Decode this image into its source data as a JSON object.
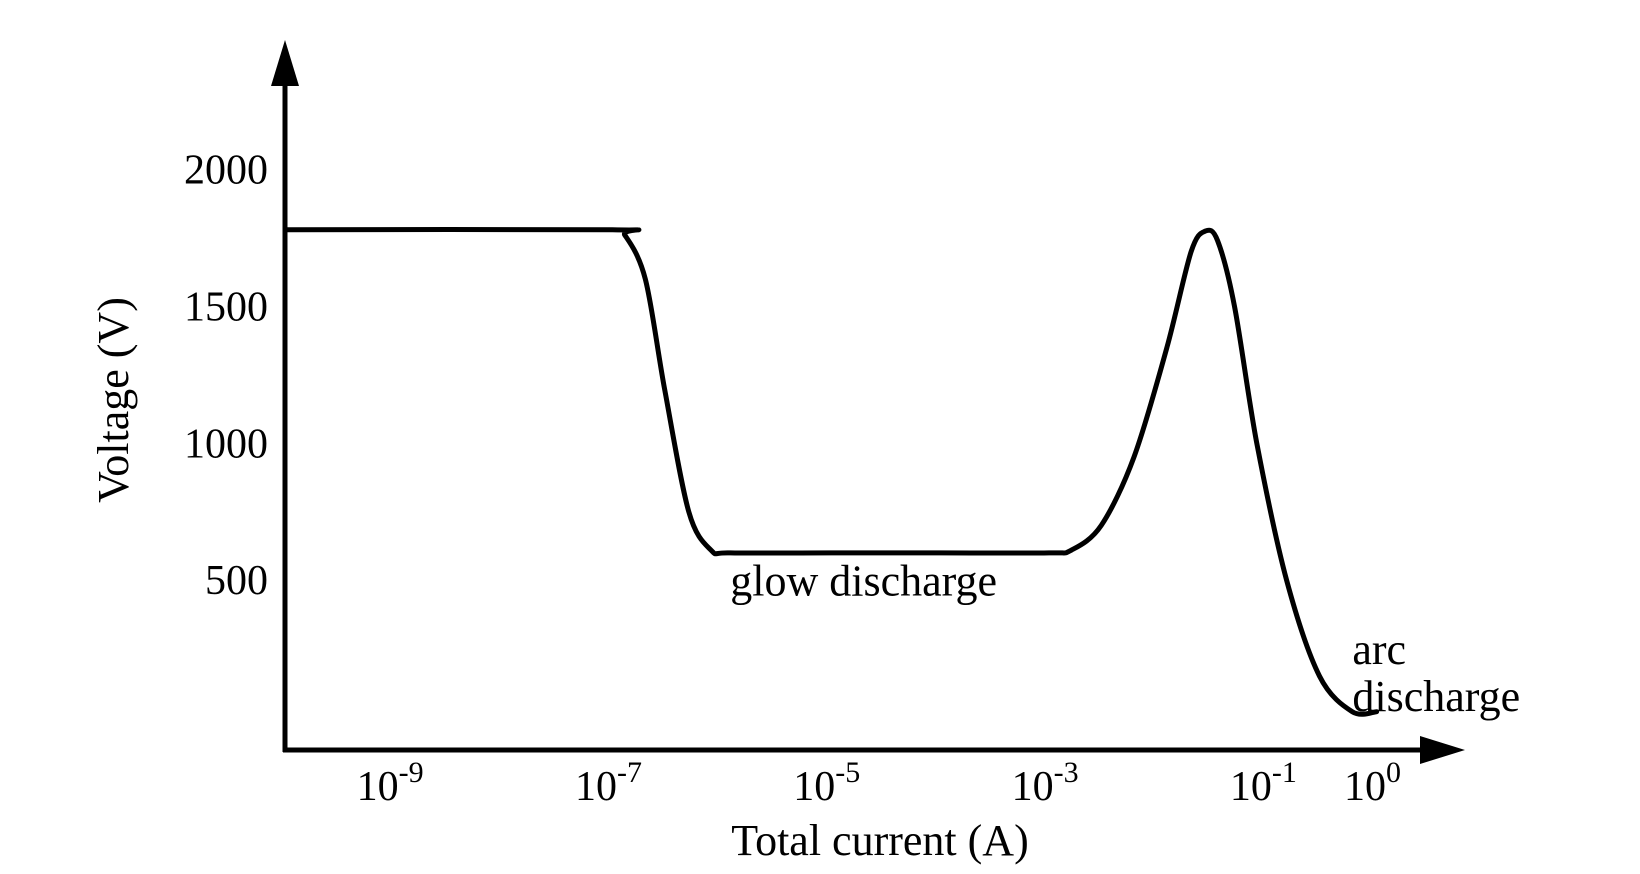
{
  "chart_data": {
    "type": "line",
    "xlabel": "Total current (A)",
    "ylabel": "Voltage (V)",
    "x_scale": "log",
    "x_ticks": [
      {
        "base": "10",
        "exp": "-9"
      },
      {
        "base": "10",
        "exp": "-7"
      },
      {
        "base": "10",
        "exp": "-5"
      },
      {
        "base": "10",
        "exp": "-3"
      },
      {
        "base": "10",
        "exp": "-1"
      },
      {
        "base": "10",
        "exp": "0"
      }
    ],
    "y_ticks": [
      "500",
      "1000",
      "1500",
      "2000"
    ],
    "series": [
      {
        "x": [
          1e-10,
          1e-07,
          1.3e-07,
          2e-07,
          3e-07,
          5e-07,
          8e-07,
          1.2e-06,
          1e-05,
          0.0001,
          0.001,
          0.0016,
          0.003,
          0.006,
          0.012,
          0.02,
          0.027,
          0.035,
          0.05,
          0.08,
          0.15,
          0.3,
          0.6,
          1.0
        ],
        "y": [
          1780,
          1780,
          1760,
          1600,
          1200,
          750,
          610,
          600,
          600,
          600,
          600,
          610,
          700,
          950,
          1350,
          1700,
          1775,
          1740,
          1500,
          1000,
          500,
          150,
          20,
          20
        ]
      }
    ],
    "annotations": [
      {
        "text": "glow discharge",
        "x": 1.2e-06,
        "y": 480
      },
      {
        "lines": [
          "arc",
          "discharge"
        ],
        "x": 0.6,
        "y": 230
      }
    ],
    "ylim": [
      -120,
      2400
    ],
    "xlim": [
      1e-10,
      2.5
    ]
  }
}
